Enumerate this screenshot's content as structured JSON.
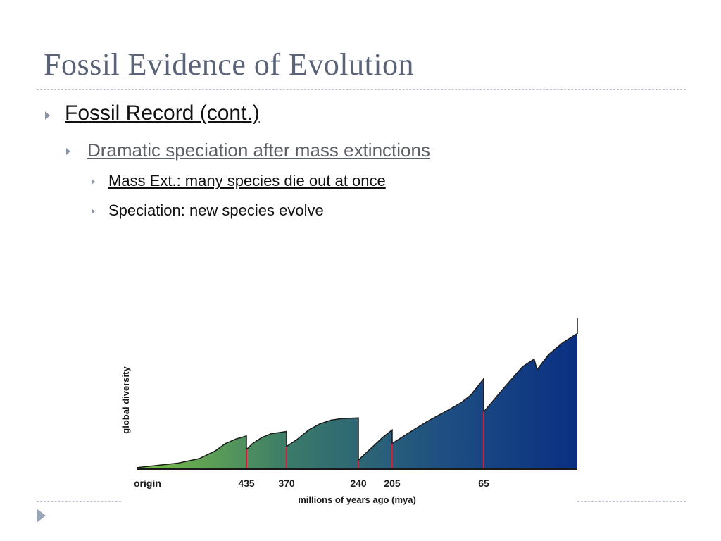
{
  "slide": {
    "title": "Fossil Evidence of Evolution",
    "bullets": {
      "level1": "Fossil Record (cont.)",
      "level2": "Dramatic speciation after mass extinctions",
      "level3": [
        "Mass Ext.: many species die out at once",
        "Speciation: new species evolve"
      ]
    }
  },
  "chart_data": {
    "type": "area",
    "title": "",
    "xlabel": "millions of years ago (mya)",
    "ylabel": "global diversity",
    "x_ticks": [
      {
        "label": "origin",
        "mya": 540
      },
      {
        "label": "435",
        "mya": 435
      },
      {
        "label": "370",
        "mya": 370
      },
      {
        "label": "240",
        "mya": 240
      },
      {
        "label": "205",
        "mya": 205
      },
      {
        "label": "65",
        "mya": 65
      }
    ],
    "xlim": [
      540,
      0
    ],
    "ylim": [
      0,
      100
    ],
    "extinction_events_mya": [
      435,
      370,
      240,
      205,
      65
    ],
    "series": [
      {
        "points": [
          [
            540,
            1
          ],
          [
            520,
            2.5
          ],
          [
            500,
            4
          ],
          [
            480,
            7
          ],
          [
            465,
            12
          ],
          [
            455,
            17
          ],
          [
            445,
            20
          ],
          [
            435,
            22
          ],
          [
            435,
            13
          ],
          [
            425,
            17
          ],
          [
            410,
            21
          ],
          [
            395,
            23.5
          ],
          [
            370,
            25
          ],
          [
            370,
            15
          ],
          [
            350,
            20
          ],
          [
            330,
            26
          ],
          [
            310,
            30
          ],
          [
            290,
            32.5
          ],
          [
            270,
            33.5
          ],
          [
            240,
            34
          ],
          [
            240,
            6
          ],
          [
            225,
            15
          ],
          [
            215,
            21
          ],
          [
            205,
            26
          ],
          [
            205,
            17
          ],
          [
            180,
            24
          ],
          [
            150,
            32
          ],
          [
            120,
            39
          ],
          [
            100,
            44
          ],
          [
            85,
            49
          ],
          [
            65,
            60
          ],
          [
            65,
            38
          ],
          [
            50,
            55
          ],
          [
            38,
            68
          ],
          [
            30,
            73
          ],
          [
            28,
            66
          ],
          [
            20,
            76
          ],
          [
            10,
            84
          ],
          [
            0,
            90
          ],
          [
            0,
            100
          ]
        ]
      }
    ],
    "gradient_colors": [
      "#7cc043",
      "#3a7a6a",
      "#1e4e82",
      "#0a2f82"
    ],
    "marker_color": "#d0203a",
    "grid": false
  }
}
